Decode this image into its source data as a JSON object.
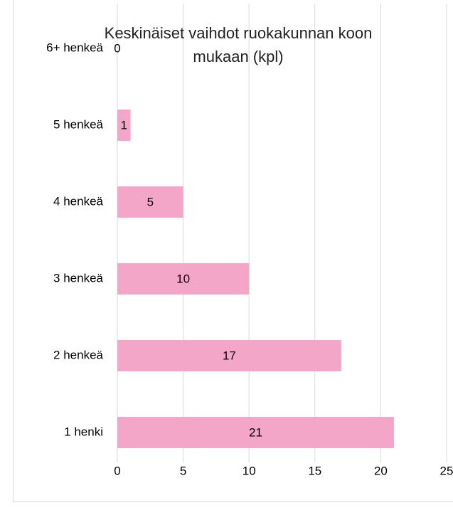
{
  "chart_data": {
    "type": "hbar",
    "title": "Keskinäiset vaihdot ruokakunnan koon mukaan (kpl)",
    "categories": [
      "1 henki",
      "2 henkeä",
      "3 henkeä",
      "4 henkeä",
      "5 henkeä",
      "6+ henkeä"
    ],
    "values": [
      21,
      17,
      10,
      5,
      1,
      0
    ],
    "color": "#f4a6c8",
    "xlim": [
      0,
      25
    ],
    "xticks": [
      0,
      5,
      10,
      15,
      20,
      25
    ],
    "grid": true
  }
}
